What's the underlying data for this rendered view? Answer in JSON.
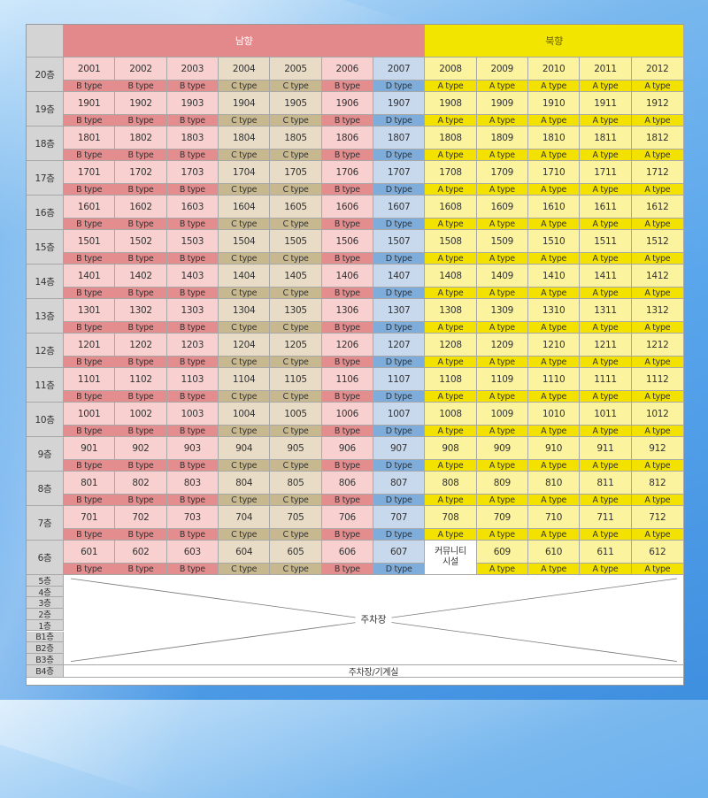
{
  "header": {
    "south_label": "남향",
    "north_label": "북향"
  },
  "colors": {
    "south_header": "#e3898b",
    "north_header": "#f2e600",
    "B": {
      "unit": "#f8d0d0",
      "type": "#e48d8f"
    },
    "C": {
      "unit": "#e8dcc6",
      "type": "#c7b890"
    },
    "D": {
      "unit": "#c8d9ee",
      "type": "#7eaddc"
    },
    "A": {
      "unit": "#fbf39e",
      "type": "#f3e200"
    }
  },
  "type_labels": {
    "A": "A type",
    "B": "B type",
    "C": "C type",
    "D": "D type"
  },
  "column_types": [
    "B",
    "B",
    "B",
    "C",
    "C",
    "B",
    "D",
    "A",
    "A",
    "A",
    "A",
    "A"
  ],
  "floors": [
    {
      "label": "20층",
      "units": [
        "2001",
        "2002",
        "2003",
        "2004",
        "2005",
        "2006",
        "2007",
        "2008",
        "2009",
        "2010",
        "2011",
        "2012"
      ]
    },
    {
      "label": "19층",
      "units": [
        "1901",
        "1902",
        "1903",
        "1904",
        "1905",
        "1906",
        "1907",
        "1908",
        "1909",
        "1910",
        "1911",
        "1912"
      ]
    },
    {
      "label": "18층",
      "units": [
        "1801",
        "1802",
        "1803",
        "1804",
        "1805",
        "1806",
        "1807",
        "1808",
        "1809",
        "1810",
        "1811",
        "1812"
      ]
    },
    {
      "label": "17층",
      "units": [
        "1701",
        "1702",
        "1703",
        "1704",
        "1705",
        "1706",
        "1707",
        "1708",
        "1709",
        "1710",
        "1711",
        "1712"
      ]
    },
    {
      "label": "16층",
      "units": [
        "1601",
        "1602",
        "1603",
        "1604",
        "1605",
        "1606",
        "1607",
        "1608",
        "1609",
        "1610",
        "1611",
        "1612"
      ]
    },
    {
      "label": "15층",
      "units": [
        "1501",
        "1502",
        "1503",
        "1504",
        "1505",
        "1506",
        "1507",
        "1508",
        "1509",
        "1510",
        "1511",
        "1512"
      ]
    },
    {
      "label": "14층",
      "units": [
        "1401",
        "1402",
        "1403",
        "1404",
        "1405",
        "1406",
        "1407",
        "1408",
        "1409",
        "1410",
        "1411",
        "1412"
      ]
    },
    {
      "label": "13층",
      "units": [
        "1301",
        "1302",
        "1303",
        "1304",
        "1305",
        "1306",
        "1307",
        "1308",
        "1309",
        "1310",
        "1311",
        "1312"
      ]
    },
    {
      "label": "12층",
      "units": [
        "1201",
        "1202",
        "1203",
        "1204",
        "1205",
        "1206",
        "1207",
        "1208",
        "1209",
        "1210",
        "1211",
        "1212"
      ]
    },
    {
      "label": "11층",
      "units": [
        "1101",
        "1102",
        "1103",
        "1104",
        "1105",
        "1106",
        "1107",
        "1108",
        "1109",
        "1110",
        "1111",
        "1112"
      ]
    },
    {
      "label": "10층",
      "units": [
        "1001",
        "1002",
        "1003",
        "1004",
        "1005",
        "1006",
        "1007",
        "1008",
        "1009",
        "1010",
        "1011",
        "1012"
      ]
    },
    {
      "label": "9층",
      "units": [
        "901",
        "902",
        "903",
        "904",
        "905",
        "906",
        "907",
        "908",
        "909",
        "910",
        "911",
        "912"
      ]
    },
    {
      "label": "8층",
      "units": [
        "801",
        "802",
        "803",
        "804",
        "805",
        "806",
        "807",
        "808",
        "809",
        "810",
        "811",
        "812"
      ]
    },
    {
      "label": "7층",
      "units": [
        "701",
        "702",
        "703",
        "704",
        "705",
        "706",
        "707",
        "708",
        "709",
        "710",
        "711",
        "712"
      ]
    },
    {
      "label": "6층",
      "units": [
        "601",
        "602",
        "603",
        "604",
        "605",
        "606",
        "607",
        "",
        "609",
        "610",
        "611",
        "612"
      ],
      "community_col": 7
    }
  ],
  "community_lines": [
    "커뮤니티",
    "시설"
  ],
  "parking_floors": [
    "5층",
    "4층",
    "3층",
    "2층",
    "1층",
    "B1층",
    "B2층",
    "B3층"
  ],
  "parking_label": "주차장",
  "bottom_floor": {
    "label": "B4층",
    "text": "주차장/기계실"
  }
}
